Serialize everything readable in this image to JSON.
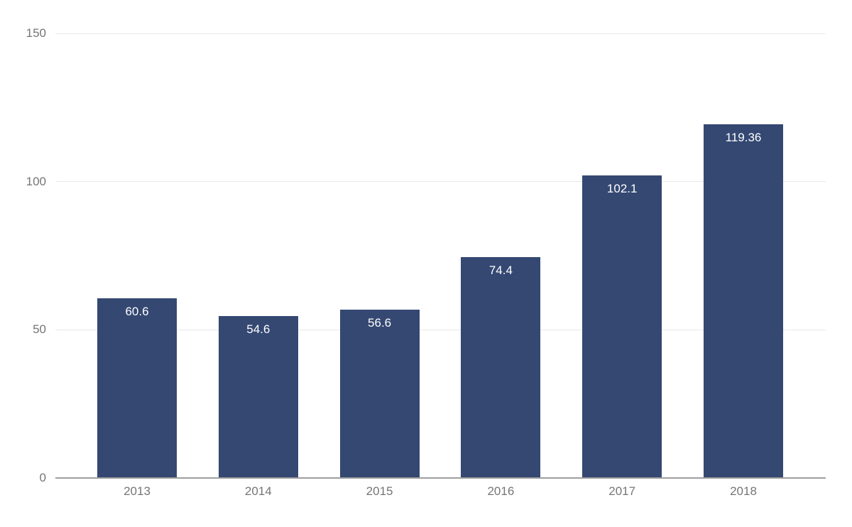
{
  "chart_data": {
    "type": "bar",
    "title": "",
    "xlabel": "",
    "ylabel": "",
    "categories": [
      "2013",
      "2014",
      "2015",
      "2016",
      "2017",
      "2018"
    ],
    "values": [
      60.6,
      54.6,
      56.6,
      74.4,
      102.1,
      119.36
    ],
    "value_labels": [
      "60.6",
      "54.6",
      "56.6",
      "74.4",
      "102.1",
      "119.36"
    ],
    "ylim": [
      0,
      150
    ],
    "yticks": [
      0,
      50,
      100,
      150
    ],
    "grid": true,
    "legend": "none",
    "value_label_position": "inside-top",
    "colors": {
      "bar": "#344872",
      "value_label": "#ffffff",
      "tick_label": "#757575",
      "gridline": "#e8e8e8",
      "axis_line": "#9e9e9e",
      "background": "#ffffff"
    }
  }
}
